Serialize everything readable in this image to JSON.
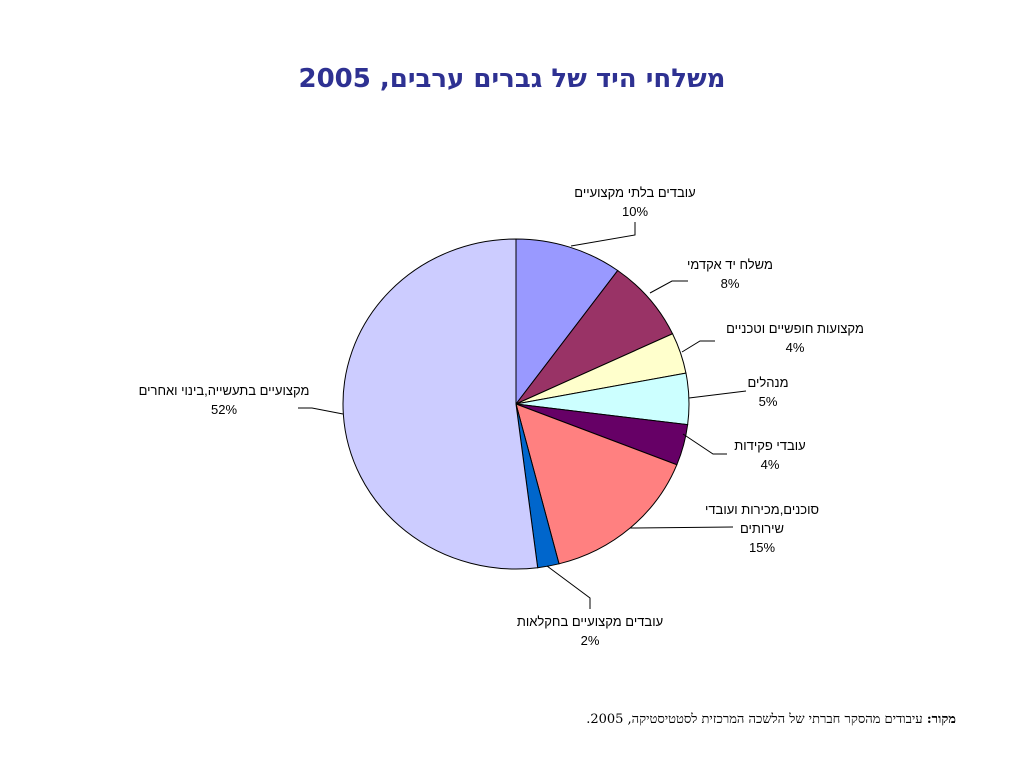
{
  "chart_data": {
    "type": "pie",
    "title": "משלחי היד של גברים ערבים, 2005",
    "slices": [
      {
        "label": "עובדים בלתי מקצועיים",
        "value": 10,
        "pct_text": "10%",
        "color": "#9999ff"
      },
      {
        "label": "משלח יד אקדמי",
        "value": 8,
        "pct_text": "8%",
        "color": "#993366"
      },
      {
        "label": "מקצועות חופשיים וטכניים",
        "value": 4,
        "pct_text": "4%",
        "color": "#ffffcc"
      },
      {
        "label": "מנהלים",
        "value": 5,
        "pct_text": "5%",
        "color": "#ccffff"
      },
      {
        "label": "עובדי פקידות",
        "value": 4,
        "pct_text": "4%",
        "color": "#660066"
      },
      {
        "label": "סוכנים,מכירות ועובדי שירותים",
        "value": 15,
        "pct_text": "15%",
        "color": "#ff8080"
      },
      {
        "label": "עובדים מקצועיים בחקלאות",
        "value": 2,
        "pct_text": "2%",
        "color": "#0066cc"
      },
      {
        "label": "מקצועיים בתעשייה,בינוי ואחרים",
        "value": 52,
        "pct_text": "52%",
        "color": "#ccccff"
      }
    ]
  },
  "source": {
    "label": "מקור:",
    "text": "עיבודים מהסקר חברתי של הלשכה המרכזית לסטטיסטיקה, 2005."
  }
}
